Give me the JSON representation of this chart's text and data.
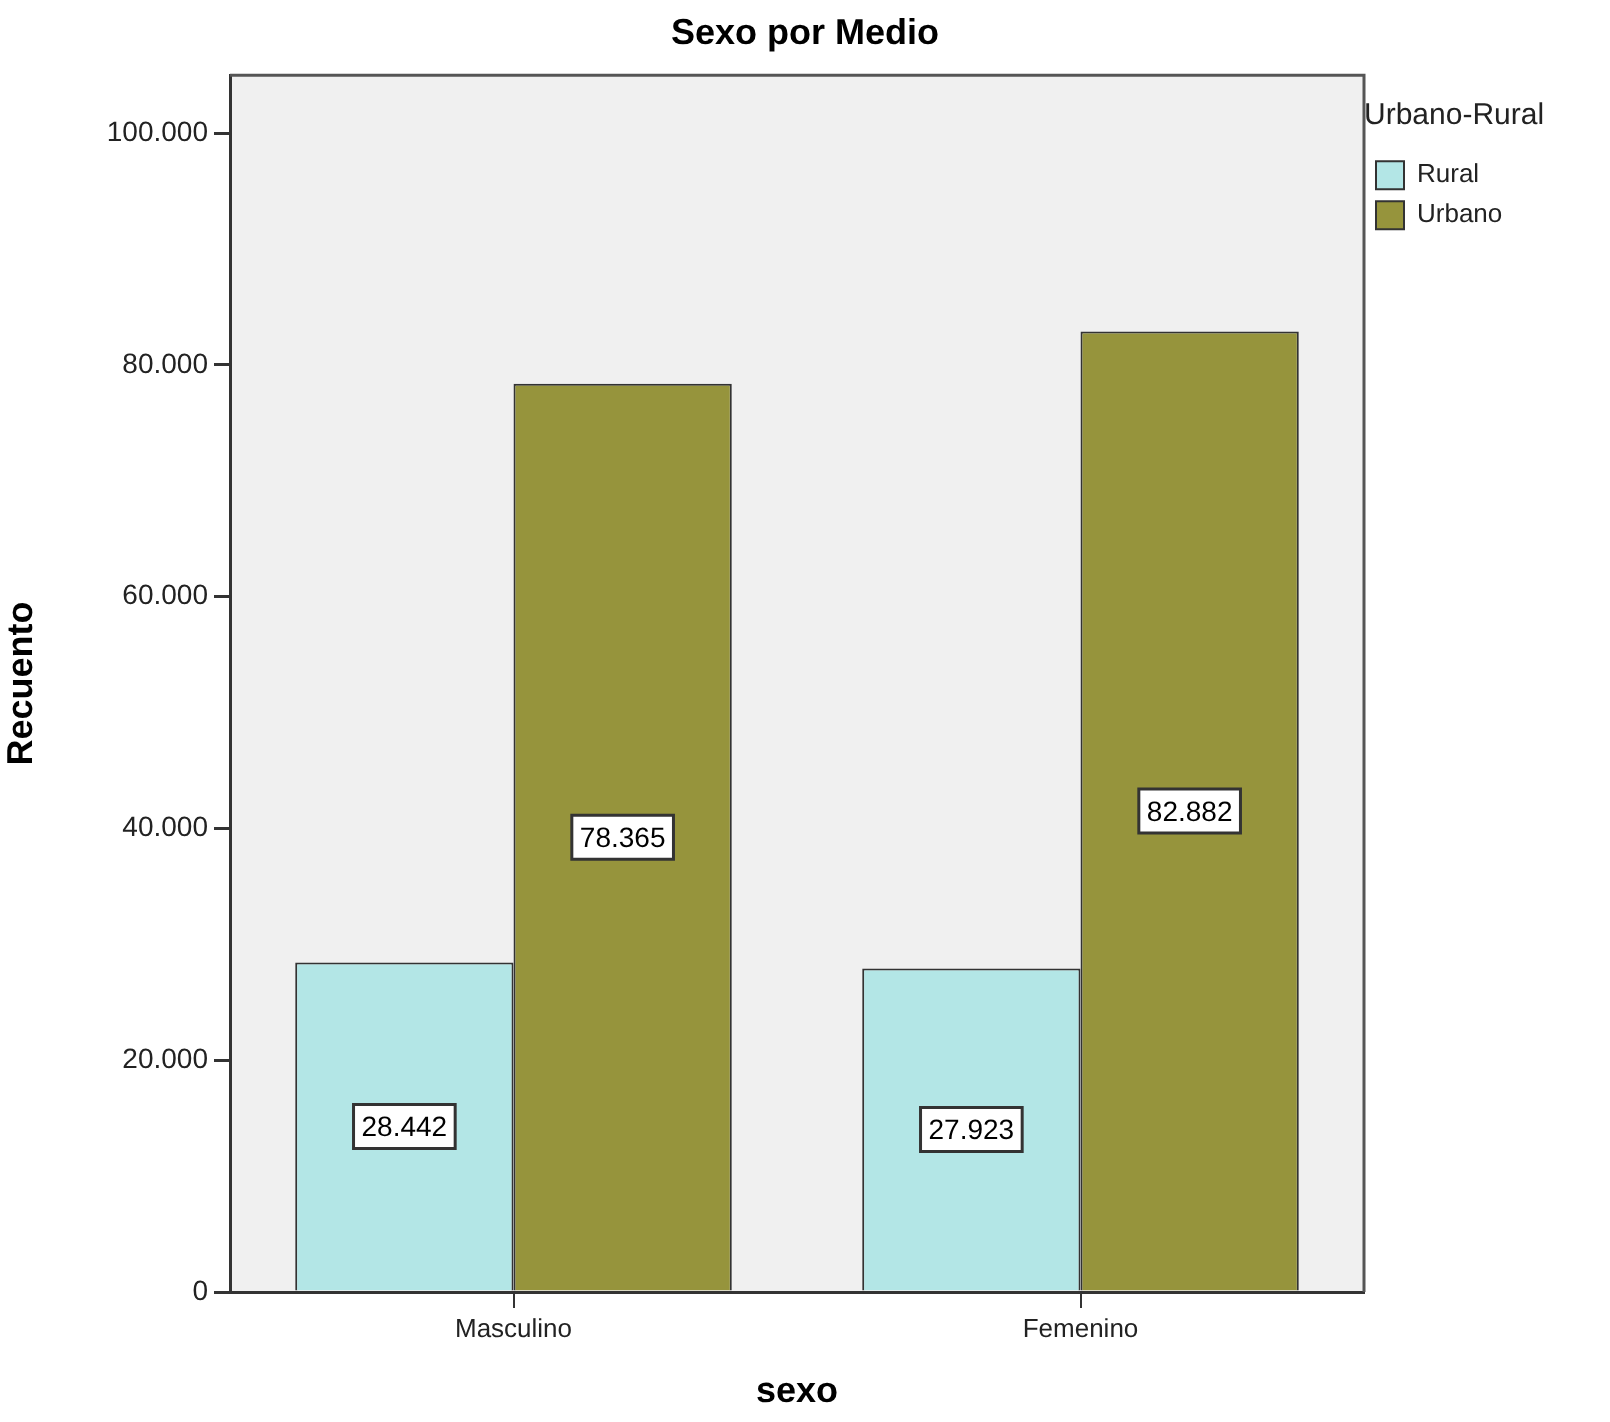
{
  "chart_data": {
    "type": "bar",
    "title": "Sexo por Medio",
    "xlabel": "sexo",
    "ylabel": "Recuento",
    "legend_title": "Urbano-Rural",
    "categories": [
      "Masculino",
      "Femenino"
    ],
    "series": [
      {
        "name": "Rural",
        "color": "#b3e6e6",
        "values": [
          28442,
          27923
        ],
        "value_labels": [
          "28.442",
          "27.923"
        ]
      },
      {
        "name": "Urbano",
        "color": "#96943c",
        "values": [
          78365,
          82882
        ],
        "value_labels": [
          "78.365",
          "82.882"
        ]
      }
    ],
    "ylim": [
      0,
      105000
    ],
    "yticks": [
      0,
      {
        "value": 20000,
        "label": "20.000"
      },
      {
        "value": 40000,
        "label": "40.000"
      },
      {
        "value": 60000,
        "label": "60.000"
      },
      {
        "value": 80000,
        "label": "80.000"
      },
      {
        "value": 100000,
        "label": "100.000"
      }
    ],
    "legend": "top right"
  }
}
